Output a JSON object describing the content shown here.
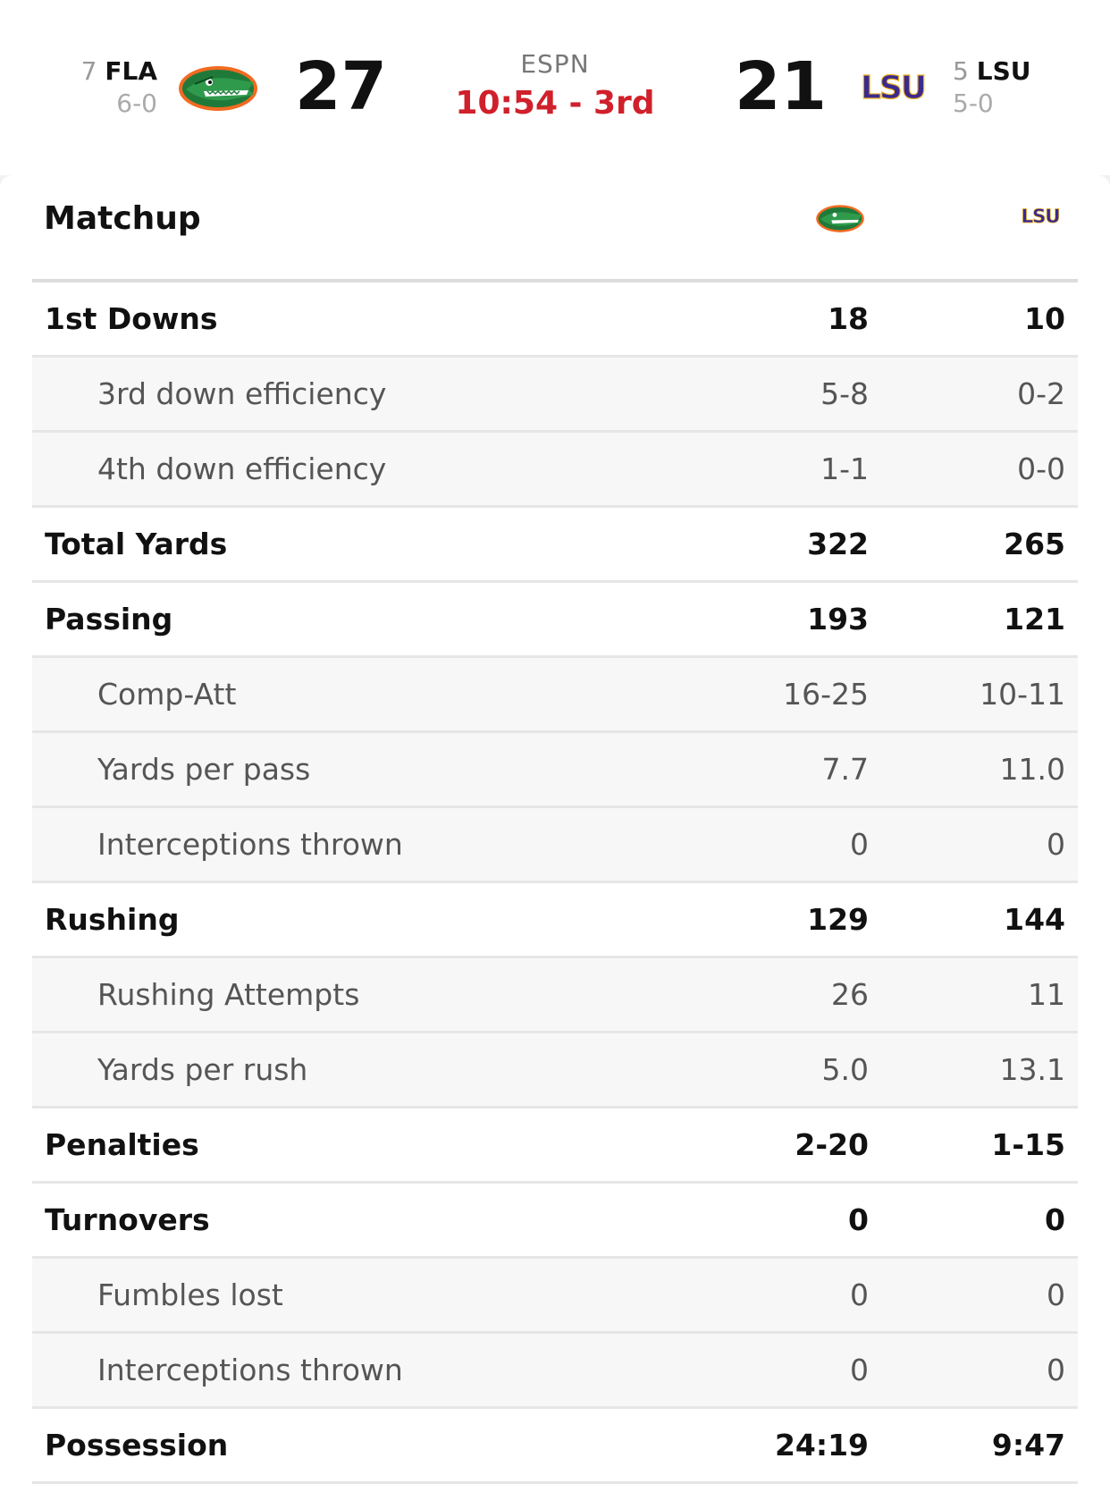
{
  "game": {
    "network": "ESPN",
    "clock": "10:54 - 3rd",
    "away": {
      "rank": "7",
      "abbr": "FLA",
      "record": "6-0",
      "score": "27",
      "logo": "gator-logo"
    },
    "home": {
      "rank": "5",
      "abbr": "LSU",
      "record": "5-0",
      "score": "21",
      "logo": "lsu-logo"
    }
  },
  "colors": {
    "clock": "#d0202b",
    "gator_green": "#1f7a3a",
    "gator_orange": "#f26a21",
    "lsu_purple": "#3b2a8e",
    "lsu_gold": "#f0b323"
  },
  "matchup": {
    "title": "Matchup",
    "stats": [
      {
        "label": "1st Downs",
        "fla": "18",
        "lsu": "10",
        "type": "main"
      },
      {
        "label": "3rd down efficiency",
        "fla": "5-8",
        "lsu": "0-2",
        "type": "sub"
      },
      {
        "label": "4th down efficiency",
        "fla": "1-1",
        "lsu": "0-0",
        "type": "sub"
      },
      {
        "label": "Total Yards",
        "fla": "322",
        "lsu": "265",
        "type": "main"
      },
      {
        "label": "Passing",
        "fla": "193",
        "lsu": "121",
        "type": "main"
      },
      {
        "label": "Comp-Att",
        "fla": "16-25",
        "lsu": "10-11",
        "type": "sub"
      },
      {
        "label": "Yards per pass",
        "fla": "7.7",
        "lsu": "11.0",
        "type": "sub"
      },
      {
        "label": "Interceptions thrown",
        "fla": "0",
        "lsu": "0",
        "type": "sub"
      },
      {
        "label": "Rushing",
        "fla": "129",
        "lsu": "144",
        "type": "main"
      },
      {
        "label": "Rushing Attempts",
        "fla": "26",
        "lsu": "11",
        "type": "sub"
      },
      {
        "label": "Yards per rush",
        "fla": "5.0",
        "lsu": "13.1",
        "type": "sub"
      },
      {
        "label": "Penalties",
        "fla": "2-20",
        "lsu": "1-15",
        "type": "main"
      },
      {
        "label": "Turnovers",
        "fla": "0",
        "lsu": "0",
        "type": "main"
      },
      {
        "label": "Fumbles lost",
        "fla": "0",
        "lsu": "0",
        "type": "sub"
      },
      {
        "label": "Interceptions thrown",
        "fla": "0",
        "lsu": "0",
        "type": "sub"
      },
      {
        "label": "Possession",
        "fla": "24:19",
        "lsu": "9:47",
        "type": "main"
      }
    ]
  }
}
